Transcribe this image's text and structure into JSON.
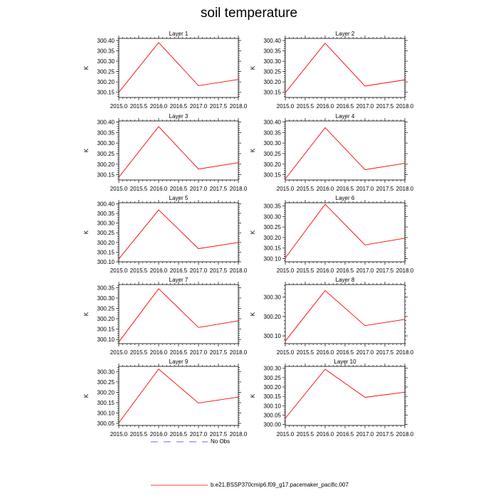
{
  "title": "soil temperature",
  "legend": {
    "no_obs_label": "No Obs",
    "model_label": "b.e21.BSSP370cmip6.f09_g17.pacemaker_pacific.007",
    "no_obs_color": "#3b3bd6",
    "model_color": "#ff0000"
  },
  "chart_data": [
    {
      "type": "line",
      "title": "Layer 1",
      "ylabel": "K",
      "x": [
        2015.0,
        2016.0,
        2017.0,
        2018.0
      ],
      "values": [
        300.15,
        300.39,
        300.182,
        300.212
      ],
      "ylim": [
        300.125,
        300.41
      ],
      "yticks": [
        "300.15",
        "300.20",
        "300.25",
        "300.30",
        "300.35",
        "300.40"
      ],
      "ytick_values": [
        300.15,
        300.2,
        300.25,
        300.3,
        300.35,
        300.4
      ],
      "xticks": [
        "2015.0",
        "2015.5",
        "2016.0",
        "2016.5",
        "2017.0",
        "2017.5",
        "2018.0"
      ],
      "xlim": [
        2015.0,
        2018.0
      ]
    },
    {
      "type": "line",
      "title": "Layer 2",
      "ylabel": "K",
      "x": [
        2015.0,
        2016.0,
        2017.0,
        2018.0
      ],
      "values": [
        300.148,
        300.387,
        300.18,
        300.21
      ],
      "ylim": [
        300.125,
        300.41
      ],
      "yticks": [
        "300.15",
        "300.20",
        "300.25",
        "300.30",
        "300.35",
        "300.40"
      ],
      "ytick_values": [
        300.15,
        300.2,
        300.25,
        300.3,
        300.35,
        300.4
      ],
      "xticks": [
        "2015.0",
        "2015.5",
        "2016.0",
        "2016.5",
        "2017.0",
        "2017.5",
        "2018.0"
      ],
      "xlim": [
        2015.0,
        2018.0
      ]
    },
    {
      "type": "line",
      "title": "Layer 3",
      "ylabel": "K",
      "x": [
        2015.0,
        2016.0,
        2017.0,
        2018.0
      ],
      "values": [
        300.138,
        300.378,
        300.177,
        300.207
      ],
      "ylim": [
        300.125,
        300.405
      ],
      "yticks": [
        "300.15",
        "300.20",
        "300.25",
        "300.30",
        "300.35",
        "300.40"
      ],
      "ytick_values": [
        300.15,
        300.2,
        300.25,
        300.3,
        300.35,
        300.4
      ],
      "xticks": [
        "2015.0",
        "2015.5",
        "2016.0",
        "2016.5",
        "2017.0",
        "2017.5",
        "2018.0"
      ],
      "xlim": [
        2015.0,
        2018.0
      ]
    },
    {
      "type": "line",
      "title": "Layer 4",
      "ylabel": "K",
      "x": [
        2015.0,
        2016.0,
        2017.0,
        2018.0
      ],
      "values": [
        300.13,
        300.373,
        300.174,
        300.204
      ],
      "ylim": [
        300.125,
        300.405
      ],
      "yticks": [
        "300.15",
        "300.20",
        "300.25",
        "300.30",
        "300.35",
        "300.40"
      ],
      "ytick_values": [
        300.15,
        300.2,
        300.25,
        300.3,
        300.35,
        300.4
      ],
      "xticks": [
        "2015.0",
        "2015.5",
        "2016.0",
        "2016.5",
        "2017.0",
        "2017.5",
        "2018.0"
      ],
      "xlim": [
        2015.0,
        2018.0
      ]
    },
    {
      "type": "line",
      "title": "Layer 5",
      "ylabel": "K",
      "x": [
        2015.0,
        2016.0,
        2017.0,
        2018.0
      ],
      "values": [
        300.115,
        300.368,
        300.168,
        300.2
      ],
      "ylim": [
        300.1,
        300.405
      ],
      "yticks": [
        "300.10",
        "300.15",
        "300.20",
        "300.25",
        "300.30",
        "300.35",
        "300.40"
      ],
      "ytick_values": [
        300.1,
        300.15,
        300.2,
        300.25,
        300.3,
        300.35,
        300.4
      ],
      "xticks": [
        "2015.0",
        "2015.5",
        "2016.0",
        "2016.5",
        "2017.0",
        "2017.5",
        "2018.0"
      ],
      "xlim": [
        2015.0,
        2018.0
      ]
    },
    {
      "type": "line",
      "title": "Layer 6",
      "ylabel": "K",
      "x": [
        2015.0,
        2016.0,
        2017.0,
        2018.0
      ],
      "values": [
        300.103,
        300.358,
        300.165,
        300.197
      ],
      "ylim": [
        300.085,
        300.365
      ],
      "yticks": [
        "300.10",
        "300.15",
        "300.20",
        "300.25",
        "300.30",
        "300.35"
      ],
      "ytick_values": [
        300.1,
        300.15,
        300.2,
        300.25,
        300.3,
        300.35
      ],
      "xticks": [
        "2015.0",
        "2015.5",
        "2016.0",
        "2016.5",
        "2017.0",
        "2017.5",
        "2018.0"
      ],
      "xlim": [
        2015.0,
        2018.0
      ]
    },
    {
      "type": "line",
      "title": "Layer 7",
      "ylabel": "K",
      "x": [
        2015.0,
        2016.0,
        2017.0,
        2018.0
      ],
      "values": [
        300.088,
        300.345,
        300.158,
        300.19
      ],
      "ylim": [
        300.08,
        300.365
      ],
      "yticks": [
        "300.10",
        "300.15",
        "300.20",
        "300.25",
        "300.30",
        "300.35"
      ],
      "ytick_values": [
        300.1,
        300.15,
        300.2,
        300.25,
        300.3,
        300.35
      ],
      "xticks": [
        "2015.0",
        "2015.5",
        "2016.0",
        "2016.5",
        "2017.0",
        "2017.5",
        "2018.0"
      ],
      "xlim": [
        2015.0,
        2018.0
      ]
    },
    {
      "type": "line",
      "title": "Layer 8",
      "ylabel": "K",
      "x": [
        2015.0,
        2016.0,
        2017.0,
        2018.0
      ],
      "values": [
        300.073,
        300.334,
        300.153,
        300.185
      ],
      "ylim": [
        300.06,
        300.365
      ],
      "yticks": [
        "300.10",
        "300.20",
        "300.30"
      ],
      "ytick_values": [
        300.1,
        300.2,
        300.3
      ],
      "xticks": [
        "2015.0",
        "2015.5",
        "2016.0",
        "2016.5",
        "2017.0",
        "2017.5",
        "2018.0"
      ],
      "xlim": [
        2015.0,
        2018.0
      ]
    },
    {
      "type": "line",
      "title": "Layer 9",
      "ylabel": "K",
      "x": [
        2015.0,
        2016.0,
        2017.0,
        2018.0
      ],
      "values": [
        300.053,
        300.312,
        300.148,
        300.177
      ],
      "ylim": [
        300.04,
        300.325
      ],
      "yticks": [
        "300.05",
        "300.10",
        "300.15",
        "300.20",
        "300.25",
        "300.30"
      ],
      "ytick_values": [
        300.05,
        300.1,
        300.15,
        300.2,
        300.25,
        300.3
      ],
      "xticks": [
        "2015.0",
        "2015.5",
        "2016.0",
        "2016.5",
        "2017.0",
        "2017.5",
        "2018.0"
      ],
      "xlim": [
        2015.0,
        2018.0
      ]
    },
    {
      "type": "line",
      "title": "Layer 10",
      "ylabel": "K",
      "x": [
        2015.0,
        2016.0,
        2017.0,
        2018.0
      ],
      "values": [
        300.033,
        300.295,
        300.145,
        300.172
      ],
      "ylim": [
        299.995,
        300.31
      ],
      "yticks": [
        "300.00",
        "300.05",
        "300.10",
        "300.15",
        "300.20",
        "300.25",
        "300.30"
      ],
      "ytick_values": [
        300.0,
        300.05,
        300.1,
        300.15,
        300.2,
        300.25,
        300.3
      ],
      "xticks": [
        "2015.0",
        "2015.5",
        "2016.0",
        "2016.5",
        "2017.0",
        "2017.5",
        "2018.0"
      ],
      "xlim": [
        2015.0,
        2018.0
      ]
    }
  ]
}
